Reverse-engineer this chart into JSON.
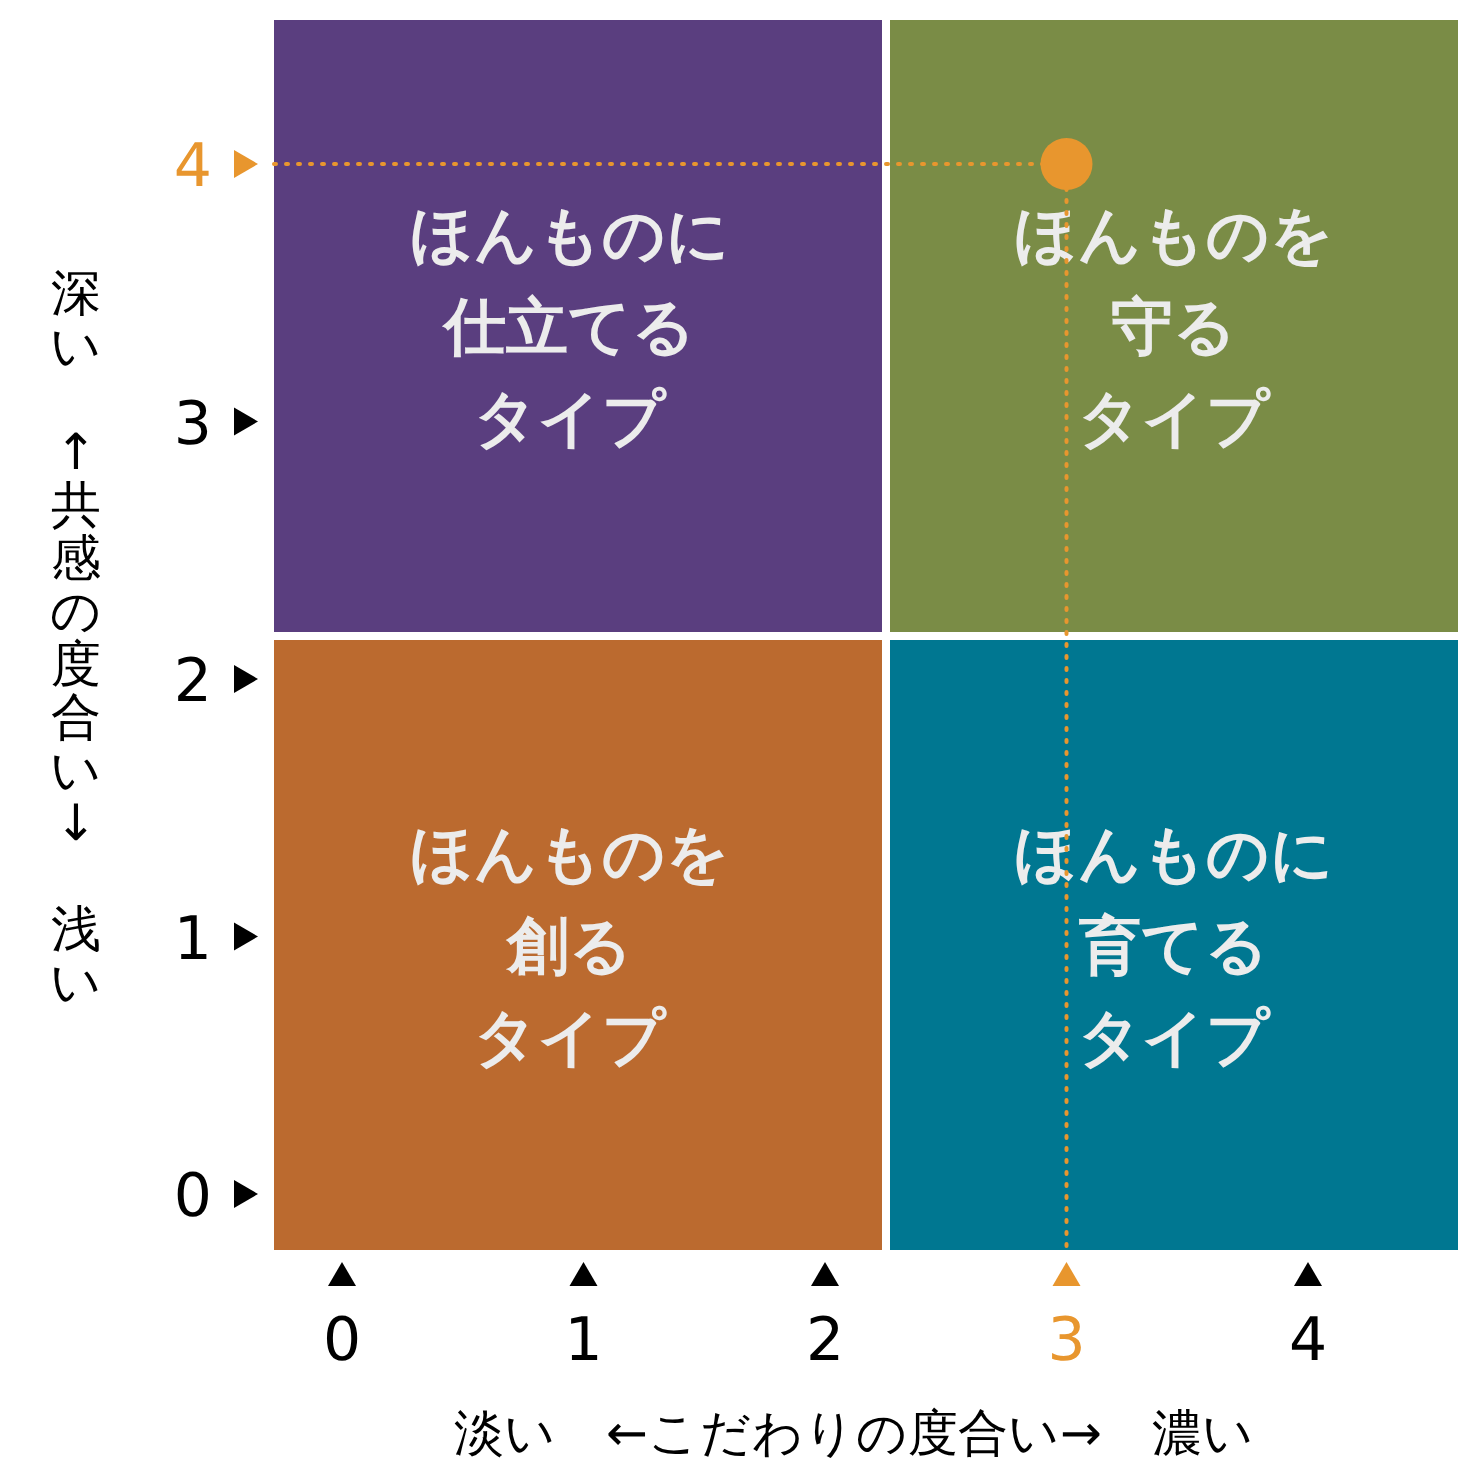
{
  "chart_data": {
    "type": "scatter",
    "xlabel": "淡い　←こだわりの度合い→　濃い",
    "ylabel": "深い　↑共感の度合い↓　浅い",
    "series": [
      {
        "color": "#e8962e",
        "x": [
          3
        ],
        "values": [
          4
        ]
      }
    ],
    "marker": "circle",
    "xlim": [
      0,
      4
    ],
    "ylim": [
      0,
      4
    ],
    "xticks": [
      0,
      1,
      2,
      3,
      4
    ],
    "yticks": [
      0,
      1,
      2,
      3,
      4
    ],
    "ref_lines": [
      {
        "axis": "x",
        "value": 3,
        "color": "#e8962e",
        "line_style": "dotted"
      },
      {
        "axis": "y",
        "value": 4,
        "color": "#e8962e",
        "line_style": "dotted"
      }
    ],
    "annotations": [
      "ほんものに",
      "仕立てる",
      "タイプ",
      "ほんものを",
      "守る",
      "タイプ",
      "ほんものを",
      "創る",
      "タイプ",
      "ほんものに",
      "育てる",
      "タイプ"
    ]
  }
}
